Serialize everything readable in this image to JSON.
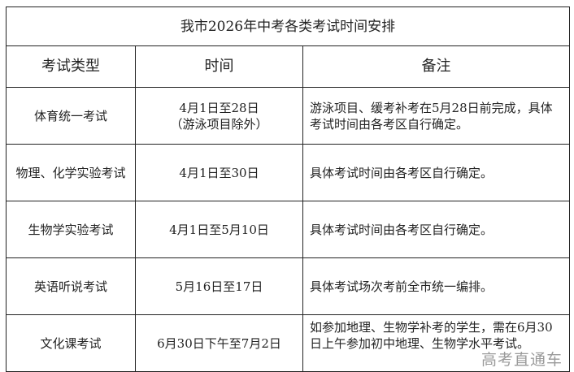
{
  "title": "我市2026年中考各类考试时间安排",
  "headers": [
    "考试类型",
    "时间",
    "备注"
  ],
  "rows": [
    {
      "type": "体育统一考试",
      "time": "4月1日至28日",
      "time_note": "（游泳项目除外）",
      "remark": "游泳项目、缓考补考在5月28日前完成，具体考试时间由各考区自行确定。"
    },
    {
      "type": "物理、化学实验考试",
      "time": "4月1日至30日",
      "time_note": "",
      "remark": "具体考试时间由各考区自行确定。"
    },
    {
      "type": "生物学实验考试",
      "time": "4月1日至5月10日",
      "time_note": "",
      "remark": "具体考试时间由各考区自行确定。"
    },
    {
      "type": "英语听说考试",
      "time": "5月16日至17日",
      "time_note": "",
      "remark": "具体考试场次考前全市统一编排。"
    },
    {
      "type": "文化课考试",
      "time": "6月30日下午至7月2日",
      "time_note": "",
      "remark": "如参加地理、生物学补考的学生，需在6月30日上午参加初中地理、生物学水平考试。"
    }
  ],
  "watermark": "高考直通车"
}
